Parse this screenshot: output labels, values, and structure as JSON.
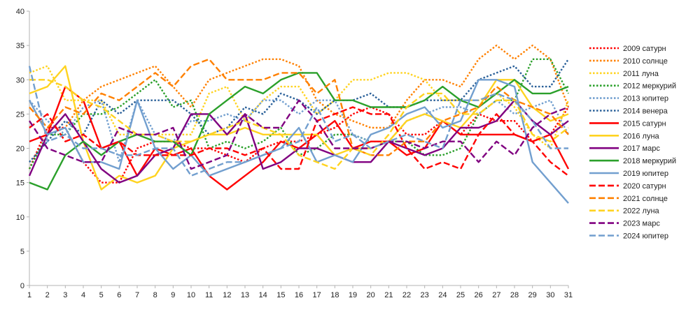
{
  "chart_data": {
    "type": "line",
    "title": "",
    "xlabel": "",
    "ylabel": "",
    "x": [
      1,
      2,
      3,
      4,
      5,
      6,
      7,
      8,
      9,
      10,
      11,
      12,
      13,
      14,
      15,
      16,
      17,
      18,
      19,
      20,
      21,
      22,
      23,
      24,
      25,
      26,
      27,
      28,
      29,
      30,
      31
    ],
    "ylim": [
      0,
      40
    ],
    "yticks": [
      0,
      5,
      10,
      15,
      20,
      25,
      30,
      35,
      40
    ],
    "grid": false,
    "legend": "right",
    "series": [
      {
        "name": "2009 сатурн",
        "color": "#ff0000",
        "style": "dotted",
        "values": [
          17,
          23,
          23,
          18,
          15,
          15,
          20,
          21,
          21,
          20,
          20,
          19,
          18,
          20,
          21,
          21,
          22,
          23,
          25,
          26,
          25,
          22,
          22,
          24,
          22,
          25,
          24,
          24,
          21,
          22,
          26
        ]
      },
      {
        "name": "2010 солнце",
        "color": "#ff8000",
        "style": "dotted",
        "values": [
          27,
          22,
          23,
          27,
          29,
          30,
          31,
          32,
          29,
          26,
          30,
          31,
          32,
          33,
          33,
          32,
          27,
          25,
          24,
          23,
          23,
          27,
          30,
          30,
          29,
          33,
          35,
          33,
          35,
          33,
          26
        ]
      },
      {
        "name": "2011 луна",
        "color": "#ffd320",
        "style": "dotted",
        "values": [
          31,
          32,
          27,
          27,
          27,
          22,
          22,
          22,
          22,
          22,
          28,
          29,
          24,
          27,
          29,
          29,
          25,
          27,
          30,
          30,
          31,
          31,
          30,
          27,
          27,
          27,
          28,
          26,
          22,
          20,
          27
        ]
      },
      {
        "name": "2012 меркурий",
        "color": "#2ba02b",
        "style": "dotted",
        "values": [
          17,
          22,
          22,
          25,
          25,
          26,
          28,
          30,
          26,
          27,
          20,
          21,
          20,
          21,
          23,
          19,
          20,
          22,
          22,
          21,
          21,
          21,
          19,
          19,
          20,
          25,
          27,
          27,
          33,
          33,
          28
        ]
      },
      {
        "name": "2013 юпитер",
        "color": "#729fcf",
        "style": "dotted",
        "values": [
          27,
          24,
          22,
          26,
          27,
          18,
          27,
          22,
          21,
          24,
          24,
          25,
          24,
          27,
          27,
          25,
          27,
          27,
          22,
          21,
          21,
          24,
          25,
          26,
          26,
          25,
          27,
          25,
          26,
          27,
          22
        ]
      },
      {
        "name": "2014 венера",
        "color": "#2a6099",
        "style": "dotted",
        "values": [
          18,
          21,
          24,
          22,
          27,
          25,
          27,
          27,
          27,
          25,
          22,
          23,
          26,
          25,
          28,
          27,
          25,
          27,
          27,
          28,
          26,
          26,
          27,
          27,
          27,
          30,
          31,
          32,
          29,
          29,
          33
        ]
      },
      {
        "name": "2015 сатурн",
        "color": "#ff0000",
        "style": "solid",
        "values": [
          21,
          22,
          29,
          27,
          20,
          21,
          16,
          20,
          19,
          20,
          16,
          14,
          16,
          18,
          21,
          20,
          22,
          24,
          20,
          21,
          21,
          19,
          20,
          24,
          22,
          22,
          22,
          22,
          21,
          22,
          17
        ]
      },
      {
        "name": "2016 луна",
        "color": "#ffd320",
        "style": "solid",
        "values": [
          28,
          29,
          32,
          21,
          14,
          16,
          15,
          16,
          20,
          21,
          22,
          22,
          23,
          22,
          22,
          22,
          22,
          19,
          20,
          20,
          21,
          24,
          25,
          24,
          23,
          26,
          30,
          30,
          26,
          24,
          25
        ]
      },
      {
        "name": "2017 марс",
        "color": "#800080",
        "style": "solid",
        "values": [
          16,
          22,
          25,
          21,
          17,
          15,
          16,
          19,
          20,
          25,
          25,
          22,
          25,
          17,
          18,
          20,
          20,
          19,
          18,
          18,
          21,
          20,
          19,
          20,
          23,
          23,
          24,
          27,
          24,
          22,
          24
        ]
      },
      {
        "name": "2018 меркурий",
        "color": "#2ba02b",
        "style": "solid",
        "values": [
          15,
          14,
          19,
          21,
          19,
          21,
          22,
          21,
          21,
          19,
          25,
          27,
          29,
          28,
          30,
          31,
          31,
          27,
          27,
          26,
          26,
          26,
          27,
          29,
          27,
          26,
          28,
          30,
          28,
          28,
          29
        ]
      },
      {
        "name": "2019 юпитер",
        "color": "#729fcf",
        "style": "solid",
        "values": [
          27,
          22,
          23,
          18,
          18,
          17,
          27,
          20,
          17,
          19,
          16,
          17,
          18,
          19,
          20,
          23,
          18,
          19,
          18,
          22,
          23,
          25,
          26,
          23,
          24,
          30,
          30,
          29,
          18,
          15,
          12
        ]
      },
      {
        "name": "2020 сатурн",
        "color": "#ff0000",
        "style": "dashed",
        "values": [
          23,
          25,
          21,
          22,
          20,
          21,
          19,
          19,
          19,
          19,
          20,
          20,
          19,
          20,
          17,
          17,
          24,
          25,
          26,
          25,
          25,
          20,
          17,
          18,
          17,
          22,
          25,
          22,
          21,
          18,
          16
        ]
      },
      {
        "name": "2021 солнце",
        "color": "#ff8000",
        "style": "dashed",
        "values": [
          26,
          23,
          26,
          25,
          28,
          27,
          29,
          31,
          29,
          32,
          33,
          30,
          30,
          30,
          31,
          31,
          28,
          30,
          20,
          19,
          19,
          21,
          21,
          24,
          25,
          26,
          29,
          27,
          26,
          25,
          22
        ]
      },
      {
        "name": "2022 луна",
        "color": "#ffd320",
        "style": "dashed",
        "values": [
          30,
          30,
          29,
          27,
          26,
          24,
          22,
          22,
          21,
          21,
          22,
          23,
          24,
          23,
          22,
          19,
          18,
          17,
          20,
          19,
          22,
          26,
          28,
          28,
          25,
          25,
          27,
          27,
          22,
          21,
          23
        ]
      },
      {
        "name": "2023 марс",
        "color": "#800080",
        "style": "dashed",
        "values": [
          24,
          20,
          19,
          18,
          18,
          23,
          22,
          22,
          23,
          17,
          18,
          19,
          25,
          23,
          23,
          27,
          24,
          20,
          20,
          20,
          21,
          21,
          20,
          21,
          21,
          18,
          21,
          19,
          23,
          25,
          26
        ]
      },
      {
        "name": "2024 юпитер",
        "color": "#729fcf",
        "style": "dashed",
        "values": [
          32,
          21,
          22,
          20,
          20,
          19,
          19,
          20,
          20,
          16,
          17,
          18,
          18,
          19,
          20,
          21,
          26,
          21,
          22,
          20,
          21,
          22,
          21,
          20,
          27,
          27,
          28,
          27,
          24,
          20,
          20
        ]
      }
    ]
  }
}
